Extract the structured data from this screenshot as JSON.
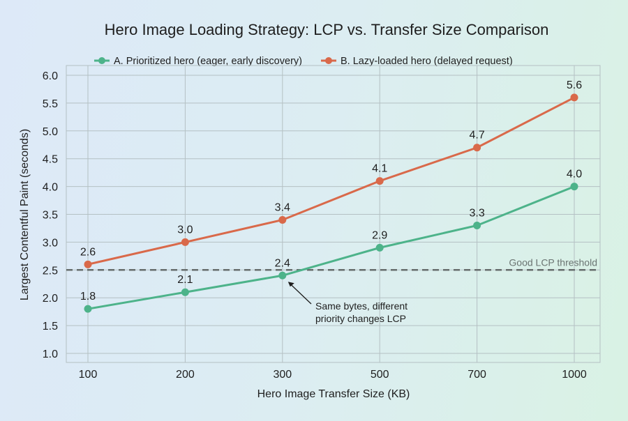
{
  "chart_data": {
    "type": "line",
    "title": "Hero Image Loading Strategy: LCP vs. Transfer Size Comparison",
    "xlabel": "Hero Image Transfer Size (KB)",
    "ylabel": "Largest Contentful Paint (seconds)",
    "categories": [
      "100",
      "200",
      "300",
      "500",
      "700",
      "1000"
    ],
    "ylim": [
      1.0,
      6.0
    ],
    "yticks": [
      "1.0",
      "1.5",
      "2.0",
      "2.5",
      "3.0",
      "3.5",
      "4.0",
      "4.5",
      "5.0",
      "5.5",
      "6.0"
    ],
    "grid": true,
    "legend_position": "top",
    "series": [
      {
        "name": "A. Prioritized hero (eager, early discovery)",
        "color": "#4db38a",
        "values": [
          1.8,
          2.1,
          2.4,
          2.9,
          3.3,
          4.0
        ]
      },
      {
        "name": "B. Lazy-loaded hero (delayed request)",
        "color": "#d9694a",
        "values": [
          2.6,
          3.0,
          3.4,
          4.1,
          4.7,
          5.6
        ]
      }
    ],
    "threshold": {
      "value": 2.5,
      "label": "Good LCP threshold",
      "color": "#666d6c"
    },
    "annotation": {
      "lines": [
        "Same bytes, different",
        "priority changes LCP"
      ],
      "points_to": {
        "x": "300",
        "y": 2.4
      }
    }
  }
}
